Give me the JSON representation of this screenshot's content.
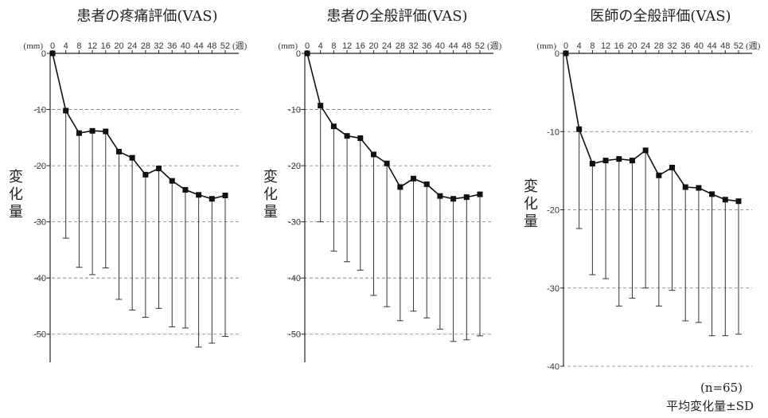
{
  "chart_data": [
    {
      "type": "line",
      "title": "患者の疼痛評価(VAS)",
      "ylabel": "変化量",
      "y_unit": "(mm)",
      "x_unit": "(週)",
      "x": [
        0,
        4,
        8,
        12,
        16,
        20,
        24,
        28,
        32,
        36,
        40,
        44,
        48,
        52
      ],
      "values": [
        0,
        -10.2,
        -14.2,
        -13.8,
        -13.9,
        -17.5,
        -18.6,
        -21.6,
        -20.5,
        -22.7,
        -24.3,
        -25.2,
        -25.9,
        -25.3
      ],
      "error_low": [
        0,
        -32.9,
        -38.1,
        -39.4,
        -38.2,
        -43.8,
        -45.7,
        -47.0,
        -45.4,
        -48.7,
        -48.9,
        -52.3,
        -51.6,
        -50.4
      ],
      "ylim": [
        -55,
        0
      ],
      "yticks": [
        0,
        -10,
        -20,
        -30,
        -40,
        -50
      ],
      "grid": "dashed horizontal",
      "error_bars": "one-sided SD (downward)"
    },
    {
      "type": "line",
      "title": "患者の全般評価(VAS)",
      "ylabel": "変化量",
      "y_unit": "(mm)",
      "x_unit": "(週)",
      "x": [
        0,
        4,
        8,
        12,
        16,
        20,
        24,
        28,
        32,
        36,
        40,
        44,
        48,
        52
      ],
      "values": [
        0,
        -9.3,
        -13.0,
        -14.7,
        -15.1,
        -18.0,
        -19.6,
        -23.8,
        -22.3,
        -23.3,
        -25.4,
        -25.9,
        -25.6,
        -25.1
      ],
      "error_low": [
        0,
        -30.0,
        -35.2,
        -37.1,
        -38.6,
        -43.1,
        -45.1,
        -47.6,
        -45.9,
        -47.1,
        -49.1,
        -51.3,
        -51.0,
        -50.3
      ],
      "ylim": [
        -55,
        0
      ],
      "yticks": [
        0,
        -10,
        -20,
        -30,
        -40,
        -50
      ],
      "grid": "dashed horizontal",
      "error_bars": "one-sided SD (downward)"
    },
    {
      "type": "line",
      "title": "医師の全般評価(VAS)",
      "ylabel": "変化量",
      "y_unit": "(mm)",
      "x_unit": "(週)",
      "x": [
        0,
        4,
        8,
        12,
        16,
        20,
        24,
        28,
        32,
        36,
        40,
        44,
        48,
        52
      ],
      "values": [
        0,
        -9.7,
        -14.1,
        -13.7,
        -13.5,
        -13.7,
        -12.4,
        -15.6,
        -14.6,
        -17.1,
        -17.2,
        -18.0,
        -18.7,
        -18.9
      ],
      "error_low": [
        0,
        -22.4,
        -28.3,
        -28.8,
        -32.3,
        -31.3,
        -30.0,
        -32.3,
        -30.3,
        -34.2,
        -34.4,
        -36.1,
        -36.1,
        -35.9
      ],
      "ylim": [
        -40,
        0
      ],
      "yticks": [
        0,
        -10,
        -20,
        -30,
        -40
      ],
      "grid": "dashed horizontal",
      "error_bars": "one-sided SD (downward)"
    }
  ],
  "notes": {
    "n": "(n=65)",
    "stat": "平均変化量±SD"
  }
}
